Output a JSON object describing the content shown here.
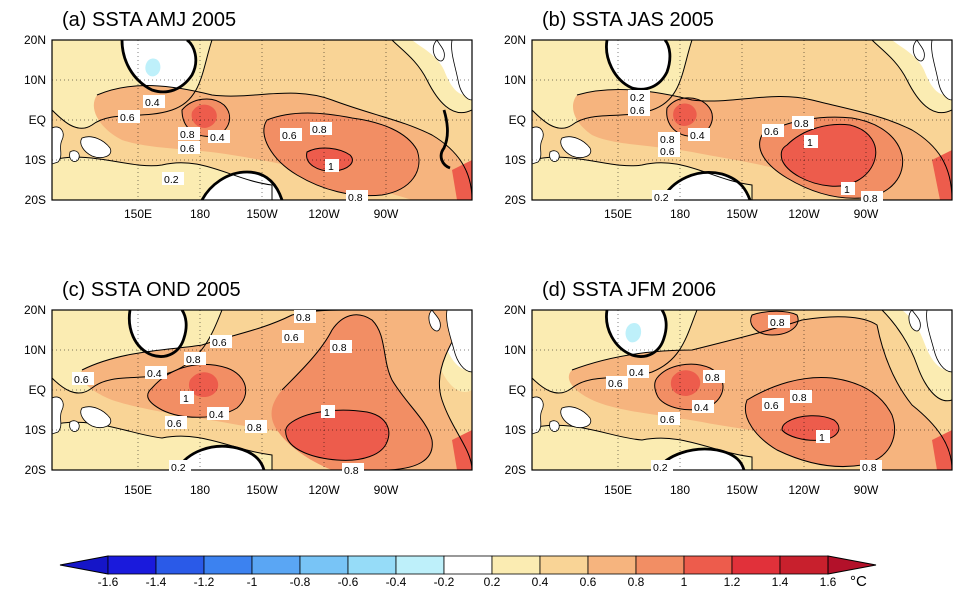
{
  "panels": [
    {
      "title": "(a) SSTA AMJ 2005"
    },
    {
      "title": "(b) SSTA JAS 2005"
    },
    {
      "title": "(c) SSTA OND 2005"
    },
    {
      "title": "(d) SSTA JFM 2006"
    }
  ],
  "axes": {
    "lat_ticks": [
      "20N",
      "10N",
      "EQ",
      "10S",
      "20S"
    ],
    "lon_ticks": [
      "150E",
      "180",
      "150W",
      "120W",
      "90W"
    ]
  },
  "contour_labels": {
    "a": [
      "0.4",
      "0.6",
      "0.8",
      "0.4",
      "0.6",
      "0.6",
      "0.8",
      "1",
      "0.2",
      "0.8"
    ],
    "b": [
      "0.2",
      "0.6",
      "0.8",
      "0.4",
      "0.6",
      "0.6",
      "0.8",
      "1",
      "1",
      "0.2",
      "0.8"
    ],
    "c": [
      "0.6",
      "0.6",
      "0.8",
      "0.8",
      "0.6",
      "0.4",
      "0.8",
      "1",
      "0.6",
      "0.4",
      "0.8",
      "1",
      "0.2",
      "0.8"
    ],
    "d": [
      "0.8",
      "0.4",
      "0.6",
      "0.8",
      "0.6",
      "0.4",
      "0.6",
      "0.8",
      "1",
      "0.2",
      "0.8"
    ]
  },
  "colorbar": {
    "labels": [
      "-1.6",
      "-1.4",
      "-1.2",
      "-1",
      "-0.8",
      "-0.6",
      "-0.4",
      "-0.2",
      "0.2",
      "0.4",
      "0.6",
      "0.8",
      "1",
      "1.2",
      "1.4",
      "1.6"
    ],
    "unit": "°C",
    "colors": [
      "#1a1adc",
      "#2a5ae8",
      "#3c82f0",
      "#5aa6f4",
      "#78c4f6",
      "#96dcf8",
      "#bef0fa",
      "#ffffff",
      "#fbecb2",
      "#f9d496",
      "#f6b47e",
      "#f28e64",
      "#ed5c4c",
      "#e1313a",
      "#c8202d"
    ],
    "under_color": "#1515c8",
    "over_color": "#b3112a"
  },
  "colors": {
    "c02": "#fbecb2",
    "c04": "#f9d496",
    "c06": "#f6b47e",
    "c08": "#f28e64",
    "c10": "#ed5c4c",
    "neg": "#bef0fa"
  }
}
